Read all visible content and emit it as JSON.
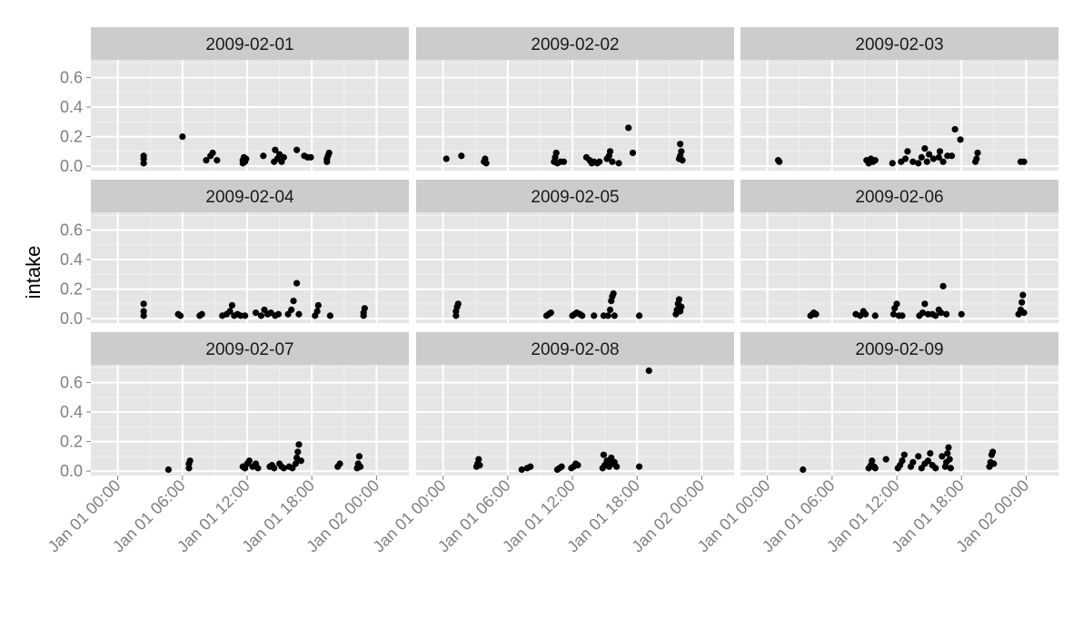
{
  "chart_data": {
    "type": "scatter",
    "facet_type": "wrap",
    "ylabel": "intake",
    "xlabel": "",
    "ylim": [
      -0.03,
      0.72
    ],
    "y_ticks": [
      0.0,
      0.2,
      0.4,
      0.6
    ],
    "y_tick_labels": [
      "0.0",
      "0.2",
      "0.4",
      "0.6"
    ],
    "x_range_hours": [
      -2.5,
      27
    ],
    "x_ticks_hours": [
      0,
      6,
      12,
      18,
      24
    ],
    "x_tick_labels": [
      "Jan 01 00:00",
      "Jan 01 06:00",
      "Jan 01 12:00",
      "Jan 01 18:00",
      "Jan 02 00:00"
    ],
    "point_color": "#000000",
    "panel_background": "#e5e5e5",
    "strip_background": "#cccccc",
    "grid_color": "#ffffff",
    "panels": [
      {
        "label": "2009-02-01",
        "points": [
          [
            2.4,
            0.02
          ],
          [
            2.4,
            0.05
          ],
          [
            2.4,
            0.07
          ],
          [
            6.0,
            0.2
          ],
          [
            8.2,
            0.04
          ],
          [
            8.6,
            0.07
          ],
          [
            8.8,
            0.09
          ],
          [
            9.2,
            0.04
          ],
          [
            11.6,
            0.02
          ],
          [
            11.6,
            0.04
          ],
          [
            11.7,
            0.06
          ],
          [
            11.8,
            0.03
          ],
          [
            11.9,
            0.05
          ],
          [
            13.5,
            0.07
          ],
          [
            14.5,
            0.03
          ],
          [
            14.6,
            0.11
          ],
          [
            14.8,
            0.05
          ],
          [
            15.0,
            0.08
          ],
          [
            15.2,
            0.03
          ],
          [
            15.4,
            0.06
          ],
          [
            16.6,
            0.11
          ],
          [
            17.3,
            0.07
          ],
          [
            17.6,
            0.06
          ],
          [
            17.9,
            0.06
          ],
          [
            19.4,
            0.03
          ],
          [
            19.4,
            0.05
          ],
          [
            19.5,
            0.07
          ],
          [
            19.6,
            0.09
          ]
        ]
      },
      {
        "label": "2009-02-02",
        "points": [
          [
            0.3,
            0.05
          ],
          [
            1.7,
            0.07
          ],
          [
            3.8,
            0.03
          ],
          [
            3.9,
            0.05
          ],
          [
            4.0,
            0.02
          ],
          [
            10.3,
            0.03
          ],
          [
            10.4,
            0.06
          ],
          [
            10.5,
            0.09
          ],
          [
            10.6,
            0.02
          ],
          [
            10.9,
            0.03
          ],
          [
            11.2,
            0.03
          ],
          [
            13.3,
            0.06
          ],
          [
            13.6,
            0.04
          ],
          [
            13.8,
            0.02
          ],
          [
            14.0,
            0.03
          ],
          [
            14.3,
            0.02
          ],
          [
            14.5,
            0.03
          ],
          [
            15.2,
            0.05
          ],
          [
            15.4,
            0.07
          ],
          [
            15.5,
            0.1
          ],
          [
            15.7,
            0.03
          ],
          [
            16.3,
            0.02
          ],
          [
            17.2,
            0.26
          ],
          [
            17.6,
            0.09
          ],
          [
            21.9,
            0.05
          ],
          [
            22.0,
            0.07
          ],
          [
            22.1,
            0.1
          ],
          [
            22.0,
            0.15
          ],
          [
            22.2,
            0.04
          ]
        ]
      },
      {
        "label": "2009-02-03",
        "points": [
          [
            1.0,
            0.04
          ],
          [
            1.1,
            0.03
          ],
          [
            9.2,
            0.04
          ],
          [
            9.4,
            0.02
          ],
          [
            9.6,
            0.05
          ],
          [
            9.8,
            0.03
          ],
          [
            10.0,
            0.04
          ],
          [
            11.6,
            0.02
          ],
          [
            12.4,
            0.03
          ],
          [
            12.8,
            0.05
          ],
          [
            13.0,
            0.1
          ],
          [
            13.5,
            0.03
          ],
          [
            14.0,
            0.02
          ],
          [
            14.3,
            0.06
          ],
          [
            14.6,
            0.12
          ],
          [
            14.8,
            0.03
          ],
          [
            15.0,
            0.08
          ],
          [
            15.4,
            0.05
          ],
          [
            15.9,
            0.06
          ],
          [
            16.0,
            0.1
          ],
          [
            16.3,
            0.03
          ],
          [
            16.7,
            0.07
          ],
          [
            17.1,
            0.07
          ],
          [
            17.4,
            0.25
          ],
          [
            17.9,
            0.18
          ],
          [
            19.3,
            0.03
          ],
          [
            19.4,
            0.05
          ],
          [
            19.5,
            0.09
          ],
          [
            23.5,
            0.03
          ],
          [
            23.8,
            0.03
          ]
        ]
      },
      {
        "label": "2009-02-04",
        "points": [
          [
            2.4,
            0.02
          ],
          [
            2.4,
            0.05
          ],
          [
            2.4,
            0.1
          ],
          [
            5.6,
            0.03
          ],
          [
            5.8,
            0.02
          ],
          [
            7.6,
            0.02
          ],
          [
            7.8,
            0.03
          ],
          [
            9.7,
            0.02
          ],
          [
            10.1,
            0.03
          ],
          [
            10.4,
            0.05
          ],
          [
            10.6,
            0.09
          ],
          [
            10.8,
            0.02
          ],
          [
            11.1,
            0.03
          ],
          [
            11.4,
            0.02
          ],
          [
            11.8,
            0.02
          ],
          [
            12.8,
            0.04
          ],
          [
            13.3,
            0.02
          ],
          [
            13.6,
            0.06
          ],
          [
            13.9,
            0.03
          ],
          [
            14.2,
            0.04
          ],
          [
            14.6,
            0.02
          ],
          [
            14.9,
            0.03
          ],
          [
            15.8,
            0.03
          ],
          [
            16.1,
            0.06
          ],
          [
            16.3,
            0.12
          ],
          [
            16.6,
            0.24
          ],
          [
            16.8,
            0.03
          ],
          [
            18.3,
            0.02
          ],
          [
            18.5,
            0.05
          ],
          [
            18.6,
            0.09
          ],
          [
            19.7,
            0.02
          ],
          [
            22.8,
            0.02
          ],
          [
            22.8,
            0.04
          ],
          [
            22.9,
            0.07
          ]
        ]
      },
      {
        "label": "2009-02-05",
        "points": [
          [
            1.2,
            0.02
          ],
          [
            1.2,
            0.05
          ],
          [
            1.3,
            0.08
          ],
          [
            1.4,
            0.1
          ],
          [
            9.6,
            0.02
          ],
          [
            9.8,
            0.03
          ],
          [
            10.0,
            0.04
          ],
          [
            12.0,
            0.02
          ],
          [
            12.2,
            0.03
          ],
          [
            12.4,
            0.04
          ],
          [
            12.7,
            0.03
          ],
          [
            12.9,
            0.02
          ],
          [
            14.0,
            0.02
          ],
          [
            14.9,
            0.02
          ],
          [
            15.3,
            0.02
          ],
          [
            15.5,
            0.06
          ],
          [
            15.6,
            0.12
          ],
          [
            15.7,
            0.15
          ],
          [
            15.8,
            0.17
          ],
          [
            15.9,
            0.02
          ],
          [
            18.2,
            0.02
          ],
          [
            21.6,
            0.03
          ],
          [
            21.7,
            0.06
          ],
          [
            21.8,
            0.1
          ],
          [
            21.9,
            0.13
          ],
          [
            22.0,
            0.05
          ],
          [
            22.1,
            0.08
          ]
        ]
      },
      {
        "label": "2009-02-06",
        "points": [
          [
            4.0,
            0.02
          ],
          [
            4.2,
            0.03
          ],
          [
            4.3,
            0.04
          ],
          [
            4.5,
            0.03
          ],
          [
            8.2,
            0.03
          ],
          [
            8.6,
            0.02
          ],
          [
            8.9,
            0.05
          ],
          [
            9.1,
            0.03
          ],
          [
            10.0,
            0.02
          ],
          [
            11.7,
            0.03
          ],
          [
            11.8,
            0.07
          ],
          [
            12.0,
            0.1
          ],
          [
            12.2,
            0.02
          ],
          [
            12.5,
            0.02
          ],
          [
            14.1,
            0.02
          ],
          [
            14.4,
            0.04
          ],
          [
            14.6,
            0.1
          ],
          [
            14.9,
            0.03
          ],
          [
            15.3,
            0.03
          ],
          [
            15.6,
            0.02
          ],
          [
            15.9,
            0.06
          ],
          [
            16.1,
            0.04
          ],
          [
            16.3,
            0.22
          ],
          [
            16.6,
            0.03
          ],
          [
            18.0,
            0.03
          ],
          [
            23.3,
            0.03
          ],
          [
            23.5,
            0.06
          ],
          [
            23.6,
            0.11
          ],
          [
            23.7,
            0.16
          ],
          [
            23.8,
            0.04
          ]
        ]
      },
      {
        "label": "2009-02-07",
        "points": [
          [
            4.7,
            0.01
          ],
          [
            6.6,
            0.02
          ],
          [
            6.6,
            0.05
          ],
          [
            6.7,
            0.07
          ],
          [
            11.6,
            0.03
          ],
          [
            11.8,
            0.02
          ],
          [
            12.0,
            0.05
          ],
          [
            12.2,
            0.07
          ],
          [
            12.5,
            0.03
          ],
          [
            12.8,
            0.05
          ],
          [
            13.0,
            0.02
          ],
          [
            14.1,
            0.03
          ],
          [
            14.3,
            0.04
          ],
          [
            14.5,
            0.02
          ],
          [
            15.0,
            0.05
          ],
          [
            15.2,
            0.03
          ],
          [
            15.4,
            0.02
          ],
          [
            15.9,
            0.03
          ],
          [
            16.2,
            0.02
          ],
          [
            16.5,
            0.05
          ],
          [
            16.6,
            0.09
          ],
          [
            16.7,
            0.13
          ],
          [
            16.8,
            0.18
          ],
          [
            17.0,
            0.07
          ],
          [
            20.4,
            0.03
          ],
          [
            20.6,
            0.05
          ],
          [
            22.2,
            0.02
          ],
          [
            22.3,
            0.05
          ],
          [
            22.4,
            0.1
          ],
          [
            22.5,
            0.03
          ]
        ]
      },
      {
        "label": "2009-02-08",
        "points": [
          [
            3.1,
            0.03
          ],
          [
            3.2,
            0.05
          ],
          [
            3.3,
            0.08
          ],
          [
            3.4,
            0.04
          ],
          [
            7.3,
            0.01
          ],
          [
            7.8,
            0.02
          ],
          [
            8.1,
            0.03
          ],
          [
            10.6,
            0.01
          ],
          [
            10.8,
            0.02
          ],
          [
            11.0,
            0.03
          ],
          [
            11.9,
            0.02
          ],
          [
            12.1,
            0.03
          ],
          [
            12.3,
            0.05
          ],
          [
            12.5,
            0.04
          ],
          [
            14.8,
            0.02
          ],
          [
            14.9,
            0.11
          ],
          [
            15.0,
            0.04
          ],
          [
            15.2,
            0.07
          ],
          [
            15.4,
            0.03
          ],
          [
            15.6,
            0.09
          ],
          [
            15.7,
            0.05
          ],
          [
            15.9,
            0.06
          ],
          [
            16.1,
            0.03
          ],
          [
            18.2,
            0.03
          ],
          [
            19.1,
            0.68
          ]
        ]
      },
      {
        "label": "2009-02-09",
        "points": [
          [
            3.3,
            0.01
          ],
          [
            9.4,
            0.02
          ],
          [
            9.6,
            0.04
          ],
          [
            9.7,
            0.07
          ],
          [
            9.9,
            0.03
          ],
          [
            10.0,
            0.02
          ],
          [
            11.0,
            0.08
          ],
          [
            12.1,
            0.02
          ],
          [
            12.3,
            0.04
          ],
          [
            12.5,
            0.07
          ],
          [
            12.7,
            0.11
          ],
          [
            13.3,
            0.03
          ],
          [
            13.5,
            0.06
          ],
          [
            14.0,
            0.1
          ],
          [
            14.3,
            0.02
          ],
          [
            14.6,
            0.05
          ],
          [
            14.9,
            0.07
          ],
          [
            15.1,
            0.12
          ],
          [
            15.3,
            0.04
          ],
          [
            15.6,
            0.02
          ],
          [
            16.2,
            0.1
          ],
          [
            16.5,
            0.03
          ],
          [
            16.6,
            0.06
          ],
          [
            16.7,
            0.12
          ],
          [
            16.8,
            0.16
          ],
          [
            16.9,
            0.08
          ],
          [
            17.0,
            0.02
          ],
          [
            20.6,
            0.03
          ],
          [
            20.7,
            0.06
          ],
          [
            20.8,
            0.11
          ],
          [
            20.9,
            0.13
          ],
          [
            21.0,
            0.05
          ]
        ]
      }
    ]
  }
}
